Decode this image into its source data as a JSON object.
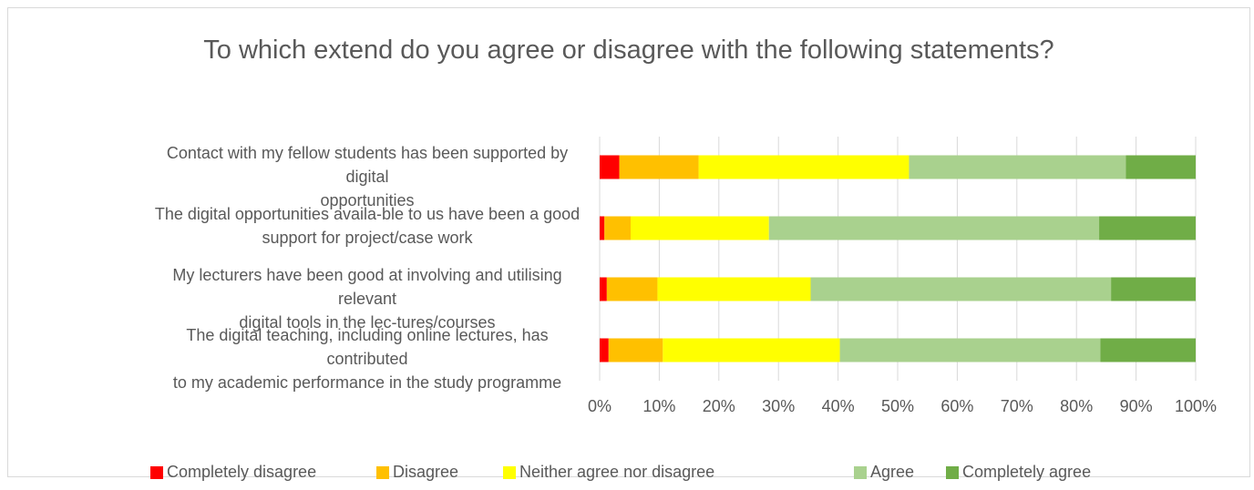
{
  "chart_data": {
    "type": "bar",
    "orientation": "horizontal",
    "stacked": "percent",
    "title": "To which extend do you agree or disagree with the following statements?",
    "categories": [
      "Contact with my fellow students has been supported by digital opportunities",
      "The digital opportunities availa-ble to us have been a good support for project/case work",
      "My lecturers have been good at involving and utilising relevant digital tools in the lec-tures/courses",
      "The digital teaching, including online lectures, has contributed to my academic performance in the study programme"
    ],
    "series": [
      {
        "name": "Completely disagree",
        "color": "#ff0000",
        "values": [
          3.3,
          0.8,
          1.2,
          1.5
        ]
      },
      {
        "name": "Disagree",
        "color": "#ffc000",
        "values": [
          13.3,
          4.4,
          8.5,
          9.1
        ]
      },
      {
        "name": "Neither agree nor disagree",
        "color": "#ffff00",
        "values": [
          35.3,
          23.2,
          25.7,
          29.7
        ]
      },
      {
        "name": "Agree",
        "color": "#a9d18e",
        "values": [
          36.4,
          55.4,
          50.4,
          43.7
        ]
      },
      {
        "name": "Completely agree",
        "color": "#70ad47",
        "values": [
          11.7,
          16.2,
          14.2,
          16.0
        ]
      }
    ],
    "xlim": [
      0,
      100
    ],
    "x_ticks": [
      "0%",
      "10%",
      "20%",
      "30%",
      "40%",
      "50%",
      "60%",
      "70%",
      "80%",
      "90%",
      "100%"
    ],
    "grid": true,
    "legend_position": "bottom"
  },
  "labels": {
    "line1": [
      "Contact with my fellow students has been supported by digital",
      "The digital opportunities availa-ble to us have been a good",
      "My lecturers have been good at involving and utilising relevant",
      "The digital teaching, including online lectures, has contributed"
    ],
    "line2": [
      "opportunities",
      "support for project/case work",
      "digital tools in the lec-tures/courses",
      "to my academic performance in the study programme"
    ]
  }
}
